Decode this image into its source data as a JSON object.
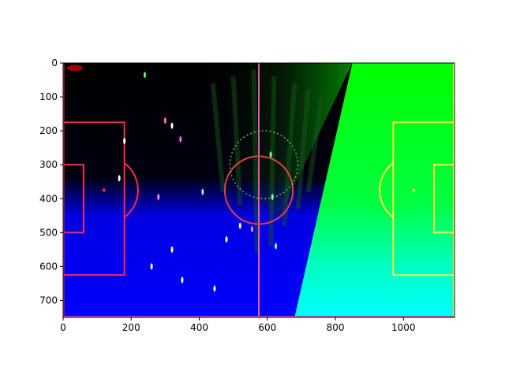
{
  "chart_data": {
    "type": "image",
    "title": "",
    "xlabel": "",
    "ylabel": "",
    "xlim": [
      0,
      1150
    ],
    "ylim": [
      750,
      0
    ],
    "xticks": [
      0,
      200,
      400,
      600,
      800,
      1000
    ],
    "xtick_labels": [
      "0",
      "200",
      "400",
      "600",
      "800",
      "1000"
    ],
    "yticks": [
      0,
      100,
      200,
      300,
      400,
      500,
      600,
      700
    ],
    "ytick_labels": [
      "0",
      "100",
      "200",
      "300",
      "400",
      "500",
      "600",
      "700"
    ],
    "grid": false,
    "image": {
      "description_colors": {
        "field_left": "#0000ff",
        "field_top_left": "#000000",
        "field_right_top": "#00ff00",
        "field_right_bottom": "#00ffff",
        "line_left": "#ff2a4a",
        "line_center": "#e04040",
        "line_right": "#ffff40"
      },
      "pitch": {
        "center_x": 575,
        "center_y": 375,
        "center_circle_radius": 100,
        "penalty_box_depth": 180,
        "penalty_box_top": 175,
        "penalty_box_bottom": 625,
        "goal_box_depth": 60,
        "goal_box_top": 300,
        "goal_box_bottom": 500,
        "penalty_spot_offset": 120,
        "field_right": 1150,
        "field_bottom": 750
      }
    }
  }
}
